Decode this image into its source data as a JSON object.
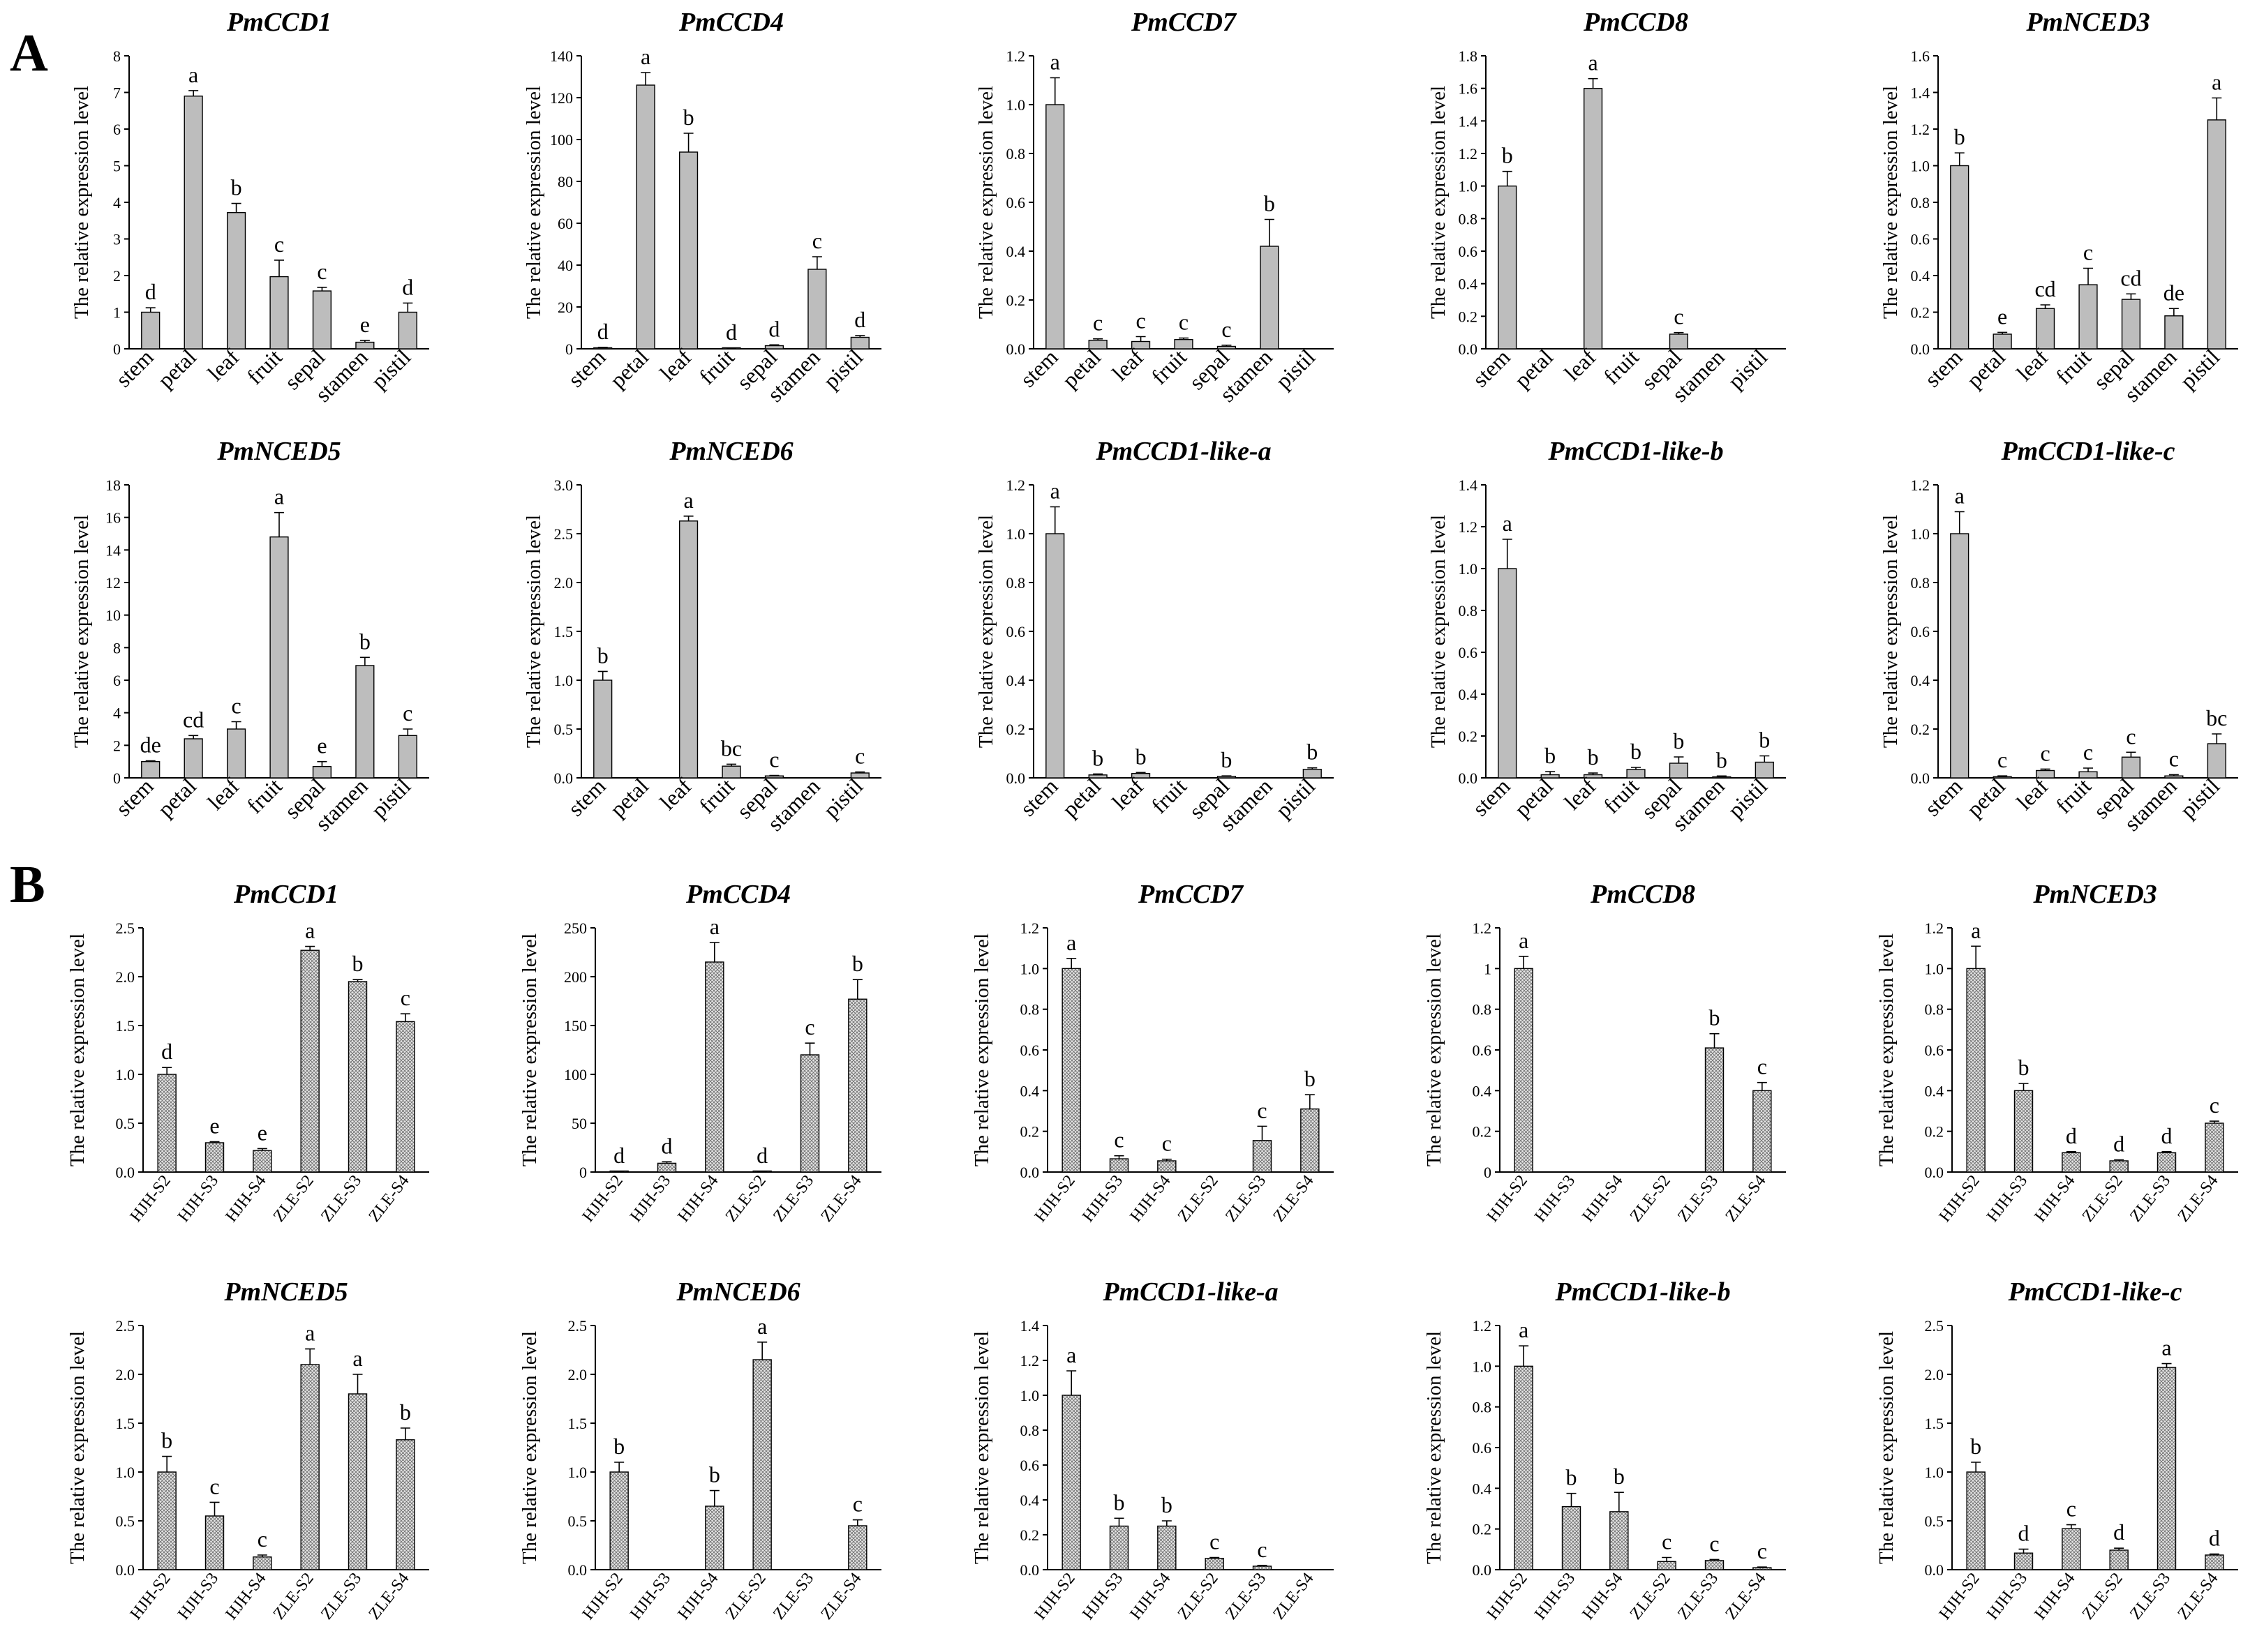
{
  "figure": {
    "panel_a_label": "A",
    "panel_b_label": "B",
    "colors": {
      "tissue_bar": "#bdbdbd",
      "stage_bar": "#e6e6e6",
      "stage_hatch": "#6e6e6e",
      "axis": "#000000"
    }
  },
  "chart_data": [
    {
      "id": "a1",
      "type": "bar",
      "group": "A",
      "title": "PmCCD1",
      "ylabel": "The relative expression level",
      "categories": [
        "stem",
        "petal",
        "leaf",
        "fruit",
        "sepal",
        "stamen",
        "pistil"
      ],
      "values": [
        1.0,
        6.9,
        3.72,
        1.97,
        1.58,
        0.18,
        1.0
      ],
      "errors": [
        0.12,
        0.15,
        0.25,
        0.45,
        0.1,
        0.05,
        0.25
      ],
      "letters": [
        "d",
        "a",
        "b",
        "c",
        "c",
        "e",
        "d"
      ],
      "ylim": [
        0,
        8
      ],
      "yticks": [
        "0",
        "1",
        "2",
        "3",
        "4",
        "5",
        "6",
        "7",
        "8"
      ]
    },
    {
      "id": "a2",
      "type": "bar",
      "group": "A",
      "title": "PmCCD4",
      "ylabel": "The relative expression level",
      "categories": [
        "stem",
        "petal",
        "leaf",
        "fruit",
        "sepal",
        "stamen",
        "pistil"
      ],
      "values": [
        0.5,
        126,
        94,
        0.3,
        1.5,
        38,
        5.5
      ],
      "errors": [
        0.2,
        6,
        9,
        0.1,
        0.4,
        6,
        0.8
      ],
      "letters": [
        "d",
        "a",
        "b",
        "d",
        "d",
        "c",
        "d"
      ],
      "ylim": [
        0,
        140
      ],
      "yticks": [
        "0",
        "20",
        "40",
        "60",
        "80",
        "100",
        "120",
        "140"
      ]
    },
    {
      "id": "a3",
      "type": "bar",
      "group": "A",
      "title": "PmCCD7",
      "ylabel": "The relative expression level",
      "categories": [
        "stem",
        "petal",
        "leaf",
        "fruit",
        "sepal",
        "stamen",
        "pistil"
      ],
      "values": [
        1.0,
        0.035,
        0.03,
        0.038,
        0.01,
        0.42,
        0
      ],
      "errors": [
        0.11,
        0.006,
        0.02,
        0.006,
        0.005,
        0.11,
        0
      ],
      "letters": [
        "a",
        "c",
        "c",
        "c",
        "c",
        "b",
        ""
      ],
      "ylim": [
        0,
        1.2
      ],
      "yticks": [
        "0.0",
        "0.2",
        "0.4",
        "0.6",
        "0.8",
        "1.0",
        "1.2"
      ]
    },
    {
      "id": "a4",
      "type": "bar",
      "group": "A",
      "title": "PmCCD8",
      "ylabel": "The relative expression level",
      "categories": [
        "stem",
        "petal",
        "leaf",
        "fruit",
        "sepal",
        "stamen",
        "pistil"
      ],
      "values": [
        1.0,
        0,
        1.6,
        0,
        0.09,
        0,
        0
      ],
      "errors": [
        0.09,
        0,
        0.06,
        0,
        0.01,
        0,
        0
      ],
      "letters": [
        "b",
        "",
        "a",
        "",
        "c",
        "",
        ""
      ],
      "ylim": [
        0,
        1.8
      ],
      "yticks": [
        "0.0",
        "0.2",
        "0.4",
        "0.6",
        "0.8",
        "1.0",
        "1.2",
        "1.4",
        "1.6",
        "1.8"
      ]
    },
    {
      "id": "a5",
      "type": "bar",
      "group": "A",
      "title": "PmNCED3",
      "ylabel": "The relative expression level",
      "categories": [
        "stem",
        "petal",
        "leaf",
        "fruit",
        "sepal",
        "stamen",
        "pistil"
      ],
      "values": [
        1.0,
        0.08,
        0.22,
        0.35,
        0.27,
        0.18,
        1.25
      ],
      "errors": [
        0.07,
        0.01,
        0.02,
        0.09,
        0.03,
        0.04,
        0.12
      ],
      "letters": [
        "b",
        "e",
        "cd",
        "c",
        "cd",
        "de",
        "a"
      ],
      "ylim": [
        0,
        1.6
      ],
      "yticks": [
        "0.0",
        "0.2",
        "0.4",
        "0.6",
        "0.8",
        "1.0",
        "1.2",
        "1.4",
        "1.6"
      ]
    },
    {
      "id": "a6",
      "type": "bar",
      "group": "A",
      "title": "PmNCED5",
      "ylabel": "The relative expression level",
      "categories": [
        "stem",
        "petal",
        "leaf",
        "fruit",
        "sepal",
        "stamen",
        "pistil"
      ],
      "values": [
        1.0,
        2.4,
        3.0,
        14.8,
        0.7,
        6.9,
        2.6
      ],
      "errors": [
        0.05,
        0.2,
        0.45,
        1.5,
        0.3,
        0.5,
        0.4
      ],
      "letters": [
        "de",
        "cd",
        "c",
        "a",
        "e",
        "b",
        "c"
      ],
      "ylim": [
        0,
        18
      ],
      "yticks": [
        "0",
        "2",
        "4",
        "6",
        "8",
        "10",
        "12",
        "14",
        "16",
        "18"
      ]
    },
    {
      "id": "a7",
      "type": "bar",
      "group": "A",
      "title": "PmNCED6",
      "ylabel": "The relative expression level",
      "categories": [
        "stem",
        "petal",
        "leaf",
        "fruit",
        "sepal",
        "stamen",
        "pistil"
      ],
      "values": [
        1.0,
        0,
        2.63,
        0.12,
        0.02,
        0,
        0.05
      ],
      "errors": [
        0.09,
        0,
        0.05,
        0.02,
        0.005,
        0,
        0.01
      ],
      "letters": [
        "b",
        "",
        "a",
        "bc",
        "c",
        "",
        "c"
      ],
      "ylim": [
        0,
        3.0
      ],
      "yticks": [
        "0.0",
        "0.5",
        "1.0",
        "1.5",
        "2.0",
        "2.5",
        "3.0"
      ]
    },
    {
      "id": "a8",
      "type": "bar",
      "group": "A",
      "title": "PmCCD1-like-a",
      "ylabel": "The relative expression level",
      "categories": [
        "stem",
        "petal",
        "leaf",
        "fruit",
        "sepal",
        "stamen",
        "pistil"
      ],
      "values": [
        1.0,
        0.012,
        0.018,
        0,
        0.006,
        0,
        0.035
      ],
      "errors": [
        0.11,
        0.004,
        0.004,
        0,
        0.002,
        0,
        0.006
      ],
      "letters": [
        "a",
        "b",
        "b",
        "",
        "b",
        "",
        "b"
      ],
      "ylim": [
        0,
        1.2
      ],
      "yticks": [
        "0.0",
        "0.2",
        "0.4",
        "0.6",
        "0.8",
        "1.0",
        "1.2"
      ]
    },
    {
      "id": "a9",
      "type": "bar",
      "group": "A",
      "title": "PmCCD1-like-b",
      "ylabel": "The relative expression level",
      "categories": [
        "stem",
        "petal",
        "leaf",
        "fruit",
        "sepal",
        "stamen",
        "pistil"
      ],
      "values": [
        1.0,
        0.015,
        0.015,
        0.04,
        0.07,
        0.005,
        0.075
      ],
      "errors": [
        0.14,
        0.015,
        0.008,
        0.01,
        0.03,
        0.004,
        0.03
      ],
      "letters": [
        "a",
        "b",
        "b",
        "b",
        "b",
        "b",
        "b"
      ],
      "ylim": [
        0,
        1.4
      ],
      "yticks": [
        "0.0",
        "0.2",
        "0.4",
        "0.6",
        "0.8",
        "1.0",
        "1.2",
        "1.4"
      ]
    },
    {
      "id": "a10",
      "type": "bar",
      "group": "A",
      "title": "PmCCD1-like-c",
      "ylabel": "The relative expression level",
      "categories": [
        "stem",
        "petal",
        "leaf",
        "fruit",
        "sepal",
        "stamen",
        "pistil"
      ],
      "values": [
        1.0,
        0.005,
        0.03,
        0.025,
        0.085,
        0.008,
        0.14
      ],
      "errors": [
        0.09,
        0.003,
        0.006,
        0.015,
        0.02,
        0.005,
        0.04
      ],
      "letters": [
        "a",
        "c",
        "c",
        "c",
        "c",
        "c",
        "bc"
      ],
      "ylim": [
        0,
        1.2
      ],
      "yticks": [
        "0.0",
        "0.2",
        "0.4",
        "0.6",
        "0.8",
        "1.0",
        "1.2"
      ]
    },
    {
      "id": "b1",
      "type": "bar",
      "group": "B",
      "title": "PmCCD1",
      "ylabel": "The relative expression level",
      "categories": [
        "HJH-S2",
        "HJH-S3",
        "HJH-S4",
        "ZLE-S2",
        "ZLE-S3",
        "ZLE-S4"
      ],
      "values": [
        1.0,
        0.3,
        0.22,
        2.27,
        1.95,
        1.54
      ],
      "errors": [
        0.07,
        0.01,
        0.02,
        0.04,
        0.02,
        0.08
      ],
      "letters": [
        "d",
        "e",
        "e",
        "a",
        "b",
        "c"
      ],
      "ylim": [
        0,
        2.5
      ],
      "yticks": [
        "0.0",
        "0.5",
        "1.0",
        "1.5",
        "2.0",
        "2.5"
      ]
    },
    {
      "id": "b2",
      "type": "bar",
      "group": "B",
      "title": "PmCCD4",
      "ylabel": "The relative expression level",
      "categories": [
        "HJH-S2",
        "HJH-S3",
        "HJH-S4",
        "ZLE-S2",
        "ZLE-S3",
        "ZLE-S4"
      ],
      "values": [
        0.5,
        9,
        215,
        0.5,
        120,
        177
      ],
      "errors": [
        0.2,
        1.5,
        20,
        0.2,
        12,
        20
      ],
      "letters": [
        "d",
        "d",
        "a",
        "d",
        "c",
        "b"
      ],
      "ylim": [
        0,
        250
      ],
      "yticks": [
        "0",
        "50",
        "100",
        "150",
        "200",
        "250"
      ]
    },
    {
      "id": "b3",
      "type": "bar",
      "group": "B",
      "title": "PmCCD7",
      "ylabel": "The relative expression level",
      "categories": [
        "HJH-S2",
        "HJH-S3",
        "HJH-S4",
        "ZLE-S2",
        "ZLE-S3",
        "ZLE-S4"
      ],
      "values": [
        1.0,
        0.065,
        0.055,
        0,
        0.155,
        0.31
      ],
      "errors": [
        0.05,
        0.015,
        0.008,
        0,
        0.07,
        0.07
      ],
      "letters": [
        "a",
        "c",
        "c",
        "",
        "c",
        "b"
      ],
      "ylim": [
        0,
        1.2
      ],
      "yticks": [
        "0.0",
        "0.2",
        "0.4",
        "0.6",
        "0.8",
        "1.0",
        "1.2"
      ]
    },
    {
      "id": "b4",
      "type": "bar",
      "group": "B",
      "title": "PmCCD8",
      "ylabel": "The relative expression level",
      "categories": [
        "HJH-S2",
        "HJH-S3",
        "HJH-S4",
        "ZLE-S2",
        "ZLE-S3",
        "ZLE-S4"
      ],
      "values": [
        1.0,
        0,
        0,
        0,
        0.61,
        0.4
      ],
      "errors": [
        0.06,
        0,
        0,
        0,
        0.07,
        0.04
      ],
      "letters": [
        "a",
        "",
        "",
        "",
        "b",
        "c"
      ],
      "ylim": [
        0,
        1.2
      ],
      "yticks": [
        "0",
        "0.2",
        "0.4",
        "0.6",
        "0.8",
        "1",
        "1.2"
      ]
    },
    {
      "id": "b5",
      "type": "bar",
      "group": "B",
      "title": "PmNCED3",
      "ylabel": "The relative expression level",
      "categories": [
        "HJH-S2",
        "HJH-S3",
        "HJH-S4",
        "ZLE-S2",
        "ZLE-S3",
        "ZLE-S4"
      ],
      "values": [
        1.0,
        0.4,
        0.095,
        0.055,
        0.095,
        0.24
      ],
      "errors": [
        0.11,
        0.035,
        0.005,
        0.005,
        0.005,
        0.01
      ],
      "letters": [
        "a",
        "b",
        "d",
        "d",
        "d",
        "c"
      ],
      "ylim": [
        0,
        1.2
      ],
      "yticks": [
        "0.0",
        "0.2",
        "0.4",
        "0.6",
        "0.8",
        "1.0",
        "1.2"
      ]
    },
    {
      "id": "b6",
      "type": "bar",
      "group": "B",
      "title": "PmNCED5",
      "ylabel": "The relative expression level",
      "categories": [
        "HJH-S2",
        "HJH-S3",
        "HJH-S4",
        "ZLE-S2",
        "ZLE-S3",
        "ZLE-S4"
      ],
      "values": [
        1.0,
        0.55,
        0.13,
        2.1,
        1.8,
        1.33
      ],
      "errors": [
        0.16,
        0.14,
        0.02,
        0.16,
        0.2,
        0.12
      ],
      "letters": [
        "b",
        "c",
        "c",
        "a",
        "a",
        "b"
      ],
      "ylim": [
        0,
        2.5
      ],
      "yticks": [
        "0.0",
        "0.5",
        "1.0",
        "1.5",
        "2.0",
        "2.5"
      ]
    },
    {
      "id": "b7",
      "type": "bar",
      "group": "B",
      "title": "PmNCED6",
      "ylabel": "The relative expression level",
      "categories": [
        "HJH-S2",
        "HJH-S3",
        "HJH-S4",
        "ZLE-S2",
        "ZLE-S3",
        "ZLE-S4"
      ],
      "values": [
        1.0,
        0,
        0.65,
        2.15,
        0,
        0.45
      ],
      "errors": [
        0.1,
        0,
        0.16,
        0.18,
        0,
        0.06
      ],
      "letters": [
        "b",
        "",
        "b",
        "a",
        "",
        "c"
      ],
      "ylim": [
        0,
        2.5
      ],
      "yticks": [
        "0.0",
        "0.5",
        "1.0",
        "1.5",
        "2.0",
        "2.5"
      ]
    },
    {
      "id": "b8",
      "type": "bar",
      "group": "B",
      "title": "PmCCD1-like-a",
      "ylabel": "The relative expression level",
      "categories": [
        "HJH-S2",
        "HJH-S3",
        "HJH-S4",
        "ZLE-S2",
        "ZLE-S3",
        "ZLE-S4"
      ],
      "values": [
        1.0,
        0.25,
        0.25,
        0.065,
        0.02,
        0
      ],
      "errors": [
        0.14,
        0.045,
        0.03,
        0.005,
        0.005,
        0
      ],
      "letters": [
        "a",
        "b",
        "b",
        "c",
        "c",
        ""
      ],
      "ylim": [
        0,
        1.4
      ],
      "yticks": [
        "0.0",
        "0.2",
        "0.4",
        "0.6",
        "0.8",
        "1.0",
        "1.2",
        "1.4"
      ]
    },
    {
      "id": "b9",
      "type": "bar",
      "group": "B",
      "title": "PmCCD1-like-b",
      "ylabel": "The relative expression level",
      "categories": [
        "HJH-S2",
        "HJH-S3",
        "HJH-S4",
        "ZLE-S2",
        "ZLE-S3",
        "ZLE-S4"
      ],
      "values": [
        1.0,
        0.31,
        0.285,
        0.04,
        0.045,
        0.01
      ],
      "errors": [
        0.1,
        0.065,
        0.095,
        0.02,
        0.005,
        0.003
      ],
      "letters": [
        "a",
        "b",
        "b",
        "c",
        "c",
        "c"
      ],
      "ylim": [
        0,
        1.2
      ],
      "yticks": [
        "0.0",
        "0.2",
        "0.4",
        "0.6",
        "0.8",
        "1.0",
        "1.2"
      ]
    },
    {
      "id": "b10",
      "type": "bar",
      "group": "B",
      "title": "PmCCD1-like-c",
      "ylabel": "The relative expression level",
      "categories": [
        "HJH-S2",
        "HJH-S3",
        "HJH-S4",
        "ZLE-S2",
        "ZLE-S3",
        "ZLE-S4"
      ],
      "values": [
        1.0,
        0.17,
        0.42,
        0.2,
        2.07,
        0.15
      ],
      "errors": [
        0.1,
        0.04,
        0.04,
        0.02,
        0.04,
        0.01
      ],
      "letters": [
        "b",
        "d",
        "c",
        "d",
        "a",
        "d"
      ],
      "ylim": [
        0,
        2.5
      ],
      "yticks": [
        "0.0",
        "0.5",
        "1.0",
        "1.5",
        "2.0",
        "2.5"
      ]
    }
  ]
}
